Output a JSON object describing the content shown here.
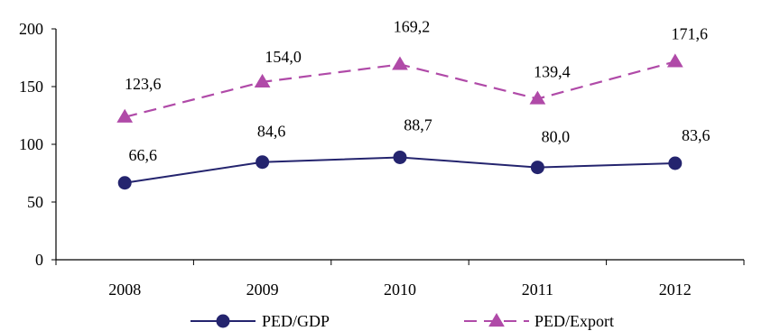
{
  "chart_data": {
    "type": "line",
    "categories": [
      "2008",
      "2009",
      "2010",
      "2011",
      "2012"
    ],
    "series": [
      {
        "name": "PED/GDP",
        "values": [
          66.6,
          84.6,
          88.7,
          80.0,
          83.6
        ],
        "labels": [
          "66,6",
          "84,6",
          "88,7",
          "80,0",
          "83,6"
        ],
        "color": "#24246e",
        "line_style": "solid",
        "marker": "circle"
      },
      {
        "name": "PED/Export",
        "values": [
          123.6,
          154.0,
          169.2,
          139.4,
          171.6
        ],
        "labels": [
          "123,6",
          "154,0",
          "169,2",
          "139,4",
          "171,6"
        ],
        "color": "#b04aa8",
        "line_style": "dashed",
        "marker": "triangle"
      }
    ],
    "y_ticks": [
      "0",
      "50",
      "100",
      "150",
      "200"
    ],
    "ylim": [
      0,
      200
    ],
    "grid": false,
    "legend_position": "bottom"
  }
}
